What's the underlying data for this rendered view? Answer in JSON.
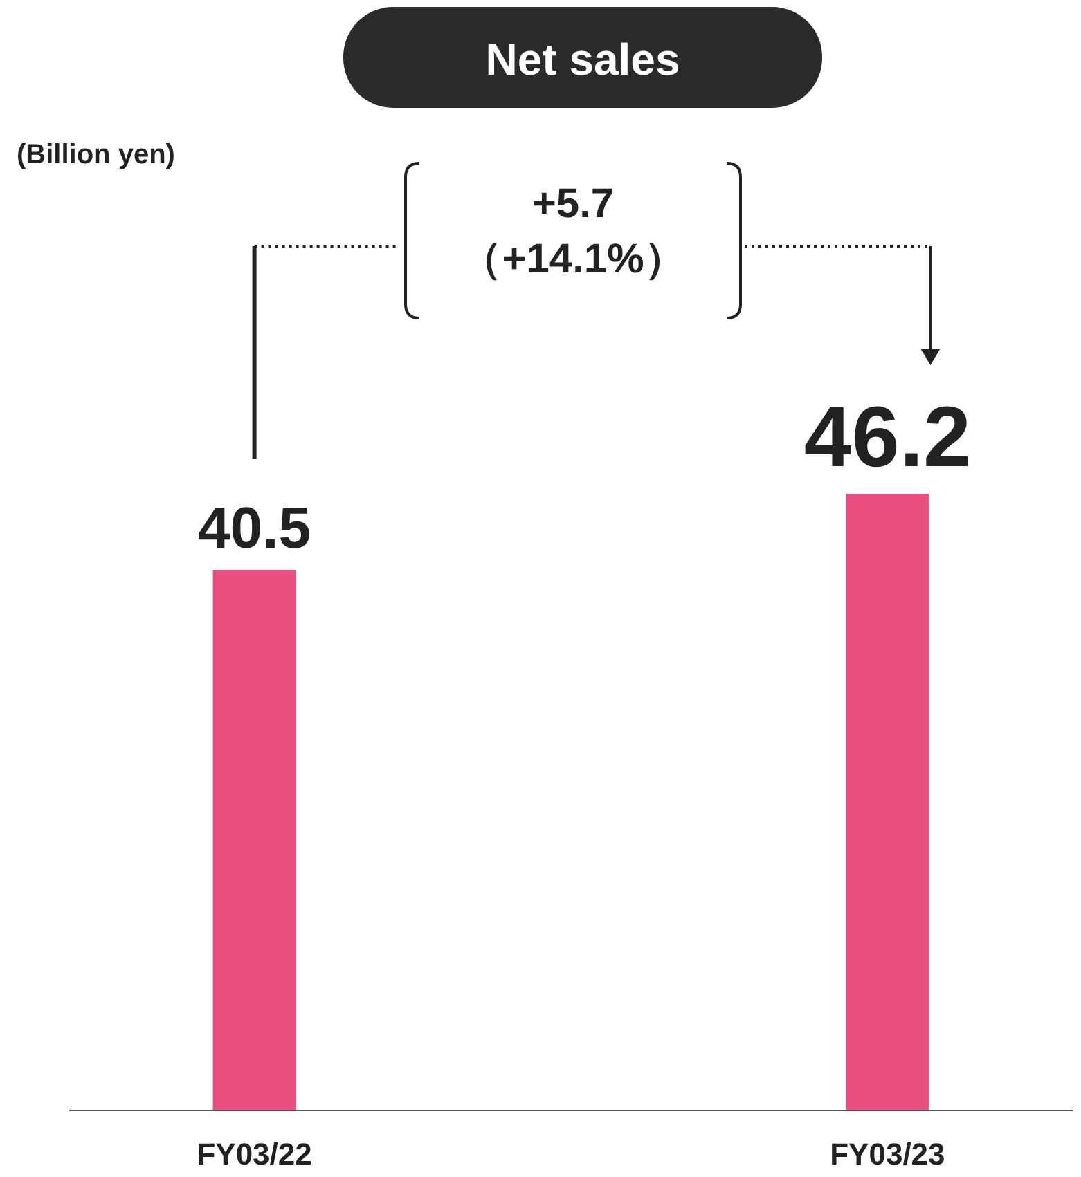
{
  "chart_data": {
    "type": "bar",
    "title": "Net sales",
    "categories": [
      "FY03/22",
      "FY03/23"
    ],
    "values": [
      40.5,
      46.2
    ],
    "color": "#e94f7f",
    "data_labels": true,
    "annotations": [
      "(Billion yen)",
      "+5.7",
      "（+14.1%）"
    ]
  }
}
